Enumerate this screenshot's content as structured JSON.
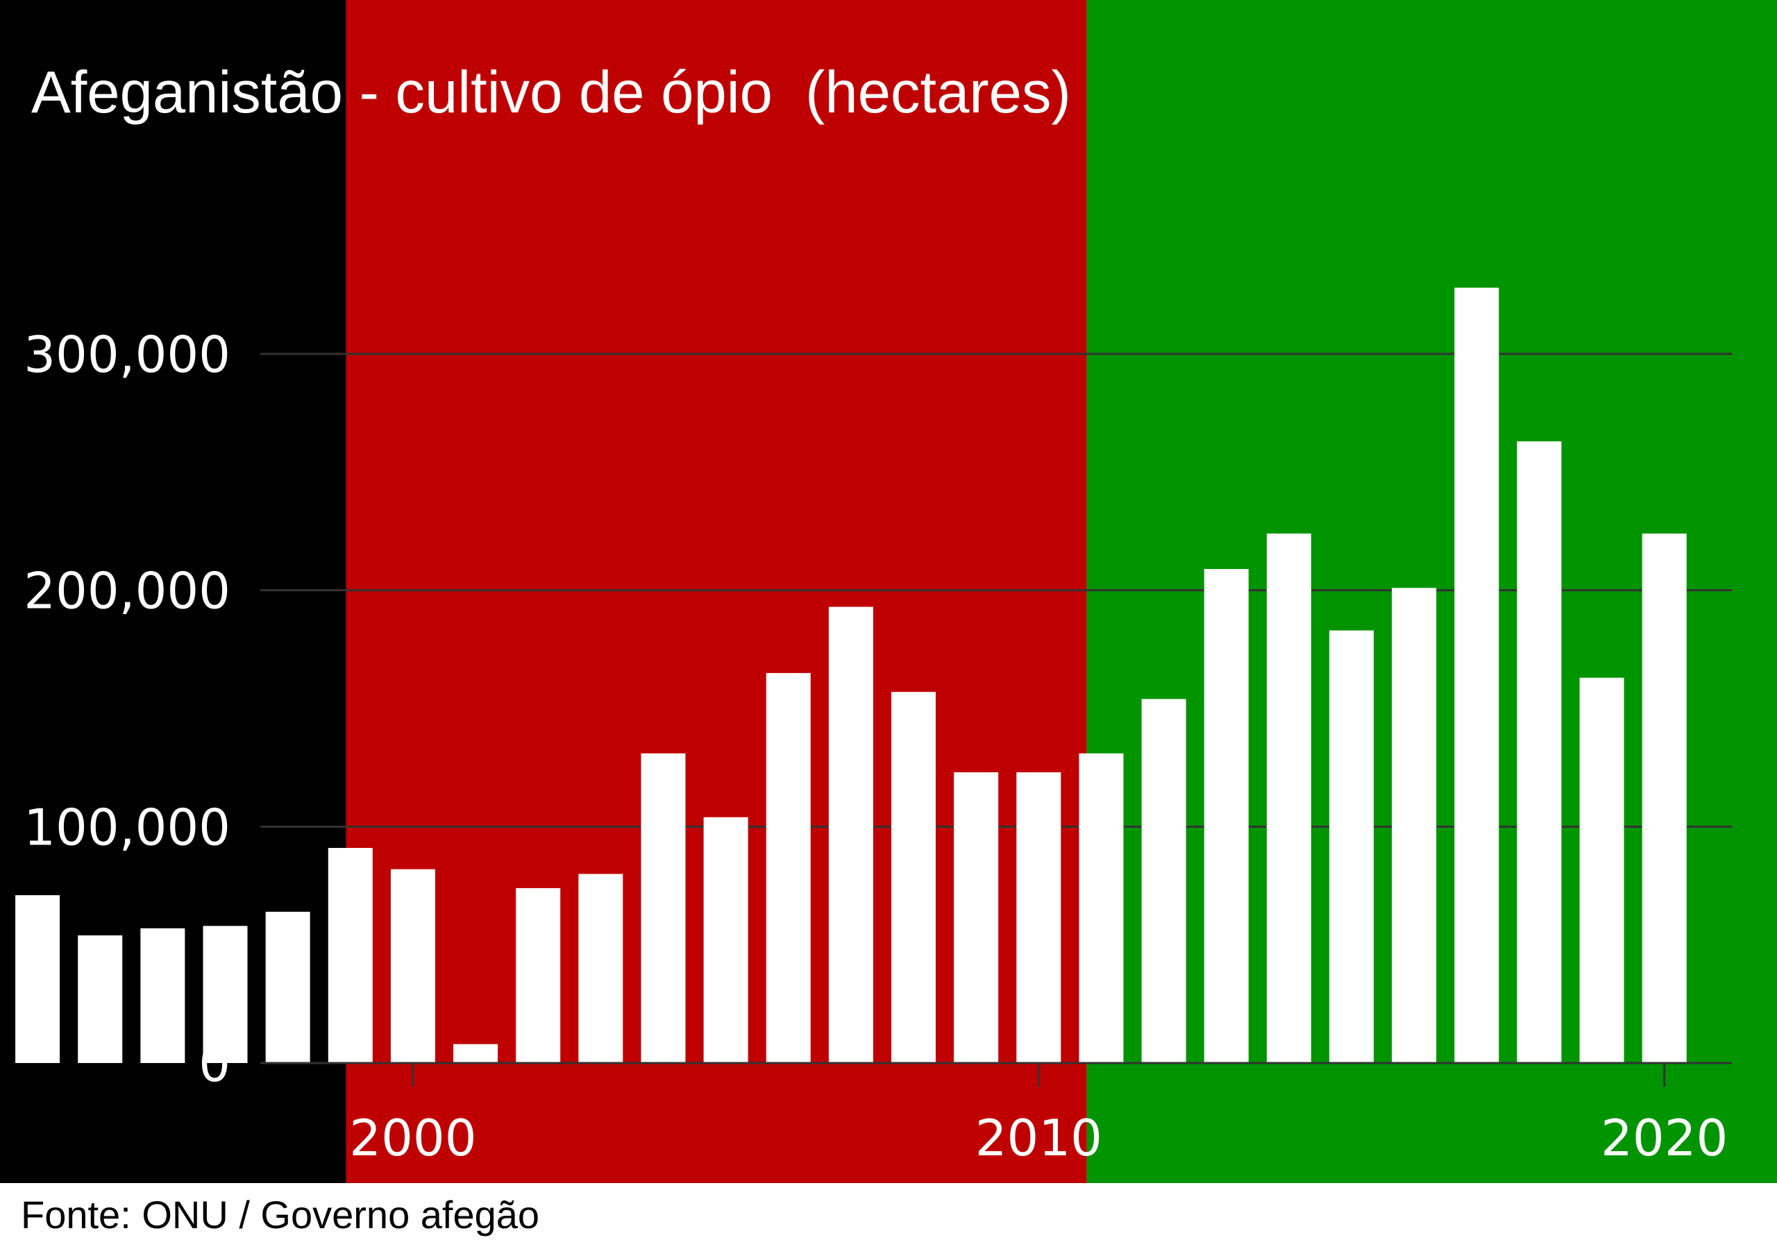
{
  "chart_data": {
    "type": "bar",
    "title": "Afeganistão - cultivo de ópio  (hectares)",
    "xlabel": "",
    "ylabel": "",
    "source": "Fonte: ONU / Governo afegão",
    "x": [
      1994,
      1995,
      1996,
      1997,
      1998,
      1999,
      2000,
      2001,
      2002,
      2003,
      2004,
      2005,
      2006,
      2007,
      2008,
      2009,
      2010,
      2011,
      2012,
      2013,
      2014,
      2015,
      2016,
      2017,
      2018,
      2019,
      2020
    ],
    "values": [
      71000,
      54000,
      57000,
      58000,
      64000,
      91000,
      82000,
      8000,
      74000,
      80000,
      131000,
      104000,
      165000,
      193000,
      157000,
      123000,
      123000,
      131000,
      154000,
      209000,
      224000,
      183000,
      201000,
      328000,
      263000,
      163000,
      224000
    ],
    "ylim": [
      0,
      350000
    ],
    "xlim": [
      1993.4,
      2021.8
    ],
    "yticks": [
      0,
      100000,
      200000,
      300000
    ],
    "ytick_labels": [
      "0",
      "100,000",
      "200,000",
      "300,000"
    ],
    "xticks": [
      2000,
      2010,
      2020
    ],
    "xtick_labels": [
      "2000",
      "2010",
      "2020"
    ],
    "grid": true,
    "bar_color": "#ffffff",
    "background_bands": [
      {
        "from": 1993.4,
        "to": 1998.93,
        "color": "#000000"
      },
      {
        "from": 1998.93,
        "to": 2010.77,
        "color": "#bf0000"
      },
      {
        "from": 2010.77,
        "to": 2021.8,
        "color": "#009400"
      }
    ],
    "gridline_color": "#333333"
  }
}
